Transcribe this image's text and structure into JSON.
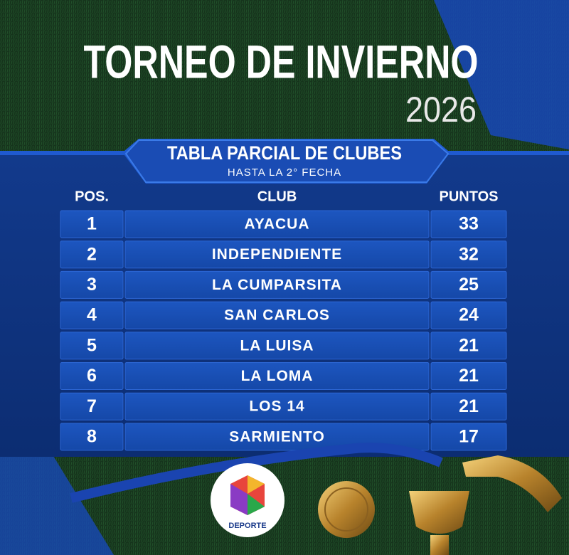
{
  "header": {
    "title": "TORNEO DE INVIERNO",
    "year": "2026"
  },
  "banner": {
    "title": "TABLA PARCIAL DE CLUBES",
    "subtitle": "HASTA LA 2° FECHA"
  },
  "table": {
    "columns": [
      "POS.",
      "CLUB",
      "PUNTOS"
    ],
    "rows": [
      [
        1,
        "AYACUA",
        33
      ],
      [
        2,
        "INDEPENDIENTE",
        32
      ],
      [
        3,
        "LA CUMPARSITA",
        25
      ],
      [
        4,
        "SAN CARLOS",
        24
      ],
      [
        5,
        "LA LUISA",
        21
      ],
      [
        6,
        "LA LOMA",
        21
      ],
      [
        7,
        "LOS 14",
        21
      ],
      [
        8,
        "SARMIENTO",
        17
      ]
    ]
  },
  "logo": {
    "label": "DEPORTE"
  }
}
